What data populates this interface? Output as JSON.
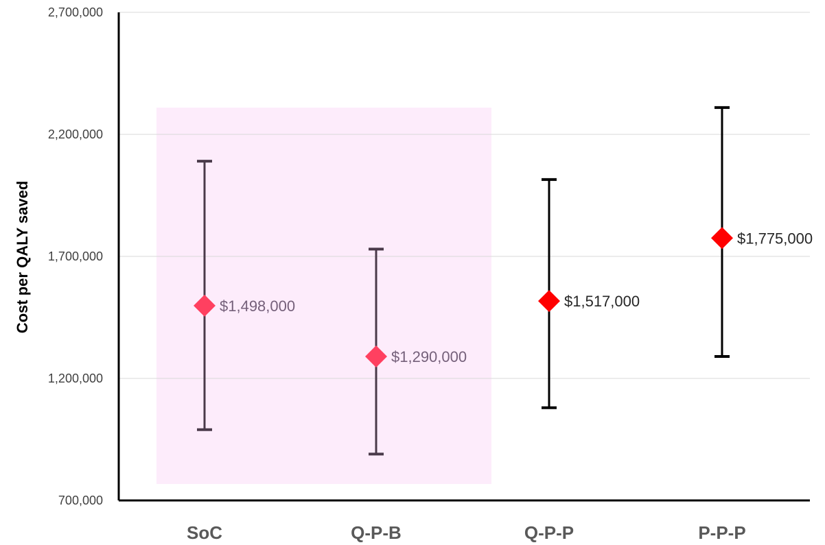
{
  "chart_data": {
    "type": "scatter",
    "title": "",
    "xlabel": "",
    "ylabel": "Cost per QALY saved",
    "ylim": [
      700000,
      2700000
    ],
    "yticks": [
      700000,
      1200000,
      1700000,
      2200000,
      2700000
    ],
    "ytick_labels": [
      "700,000",
      "1,200,000",
      "1,700,000",
      "2,200,000",
      "2,700,000"
    ],
    "grid": true,
    "legend": "none",
    "categories": [
      "SoC",
      "Q-P-B",
      "Q-P-P",
      "P-P-P"
    ],
    "values": [
      1498000,
      1290000,
      1517000,
      1775000
    ],
    "error_low": [
      990000,
      890000,
      1080000,
      1290000
    ],
    "error_high": [
      2090000,
      1730000,
      2015000,
      2310000
    ],
    "data_labels": [
      "$1,498,000",
      "$1,290,000",
      "$1,517,000",
      "$1,775,000"
    ],
    "highlighted_categories": [
      "SoC",
      "Q-P-B"
    ],
    "colors": {
      "marker": "#ff0000",
      "marker_highlighted": "#ff4060",
      "errorbar": "#000000",
      "errorbar_highlighted": "#4a3a4a",
      "label": "#262626",
      "label_highlighted": "#75607a",
      "highlight_band": "#fdecfb",
      "gridline": "#d9d9d9",
      "axis": "#000000"
    }
  }
}
